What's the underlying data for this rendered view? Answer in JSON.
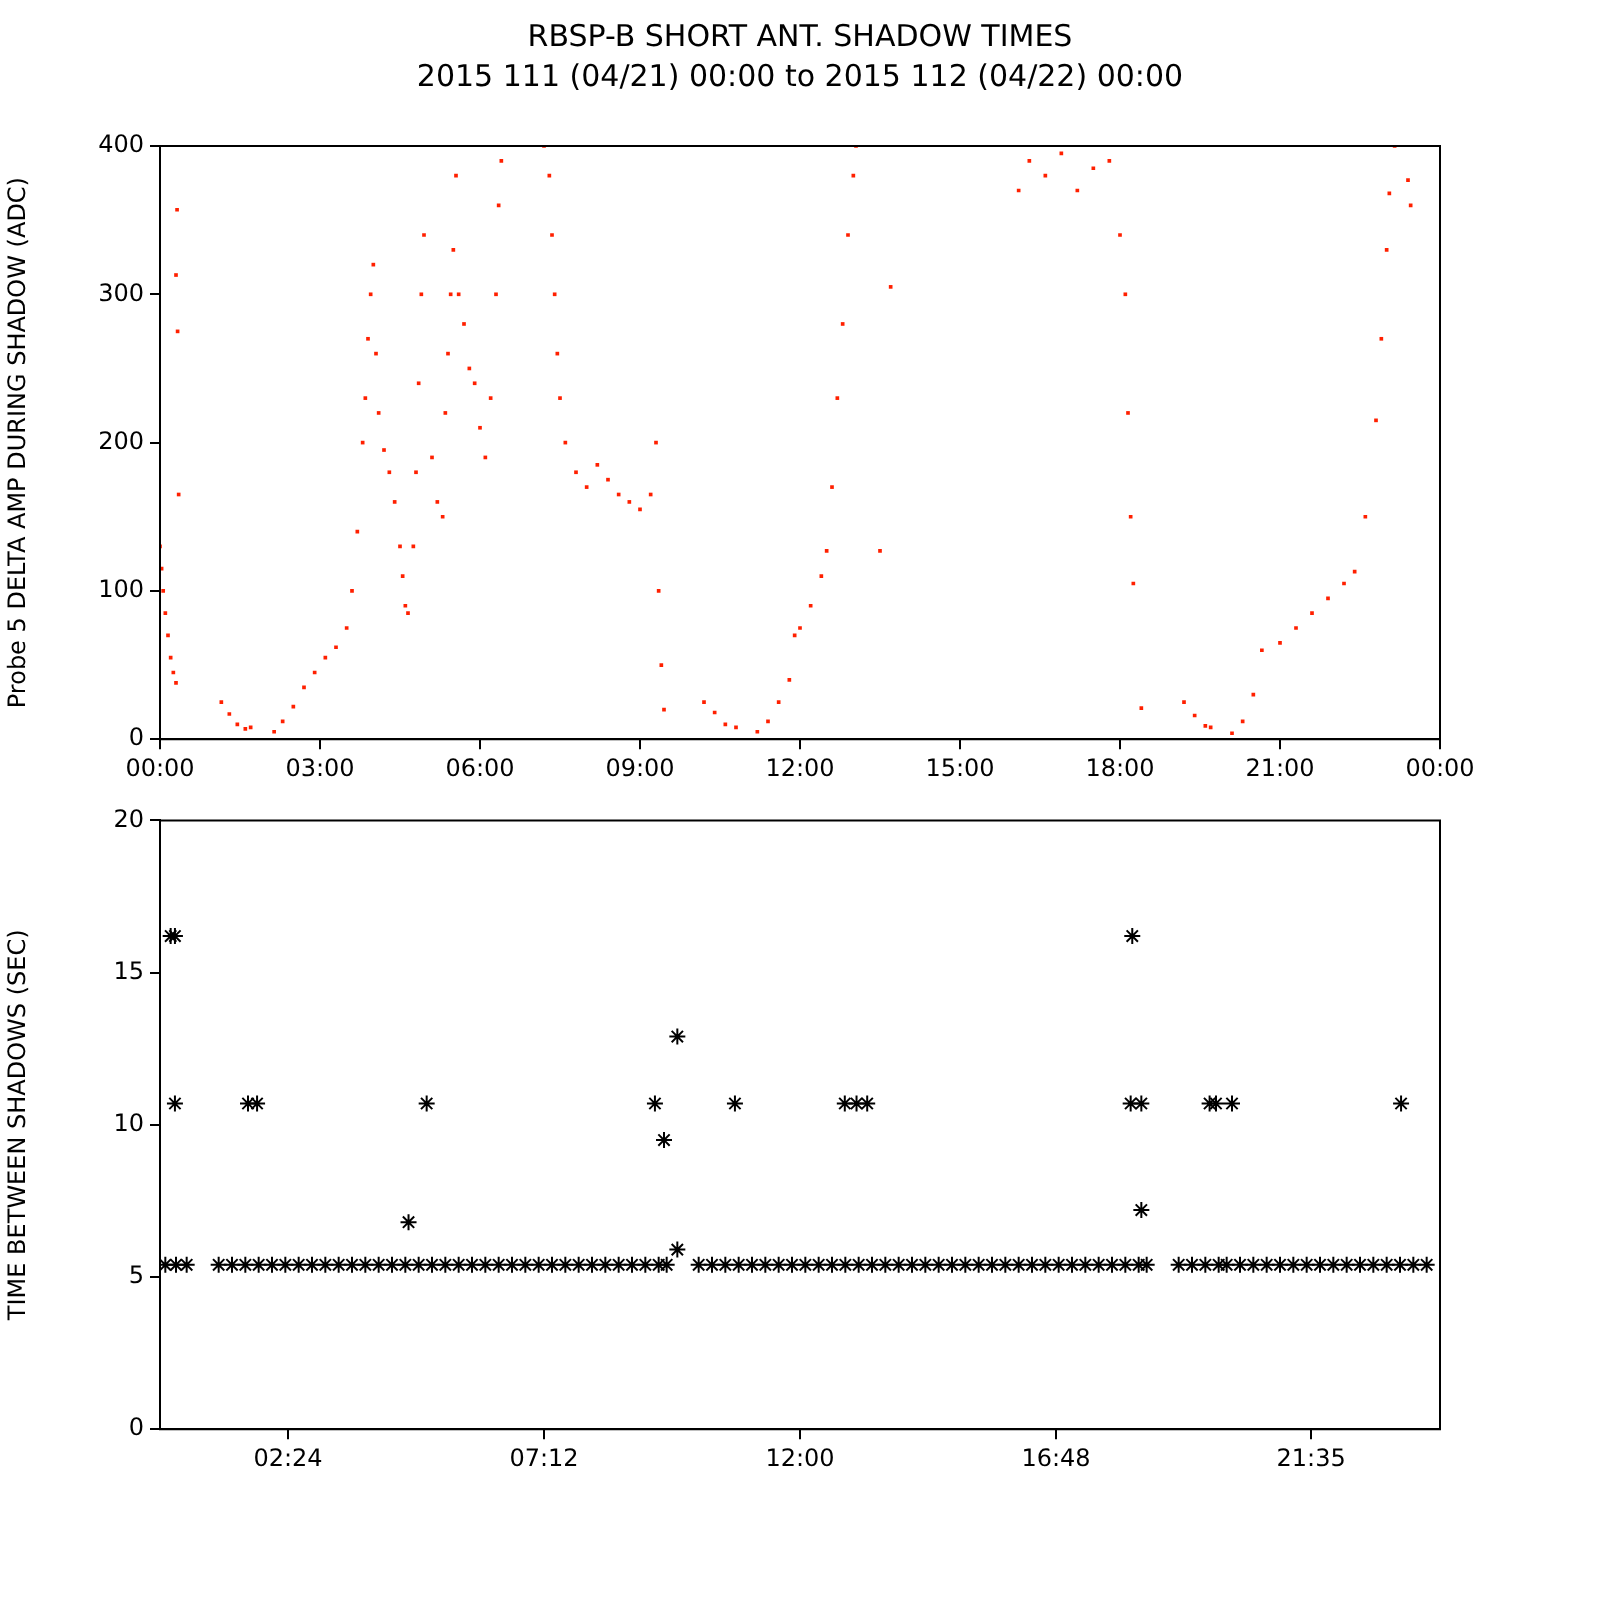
{
  "chart_data": [
    {
      "type": "scatter",
      "title": "RBSP-B SHORT ANT. SHADOW TIMES",
      "subtitle": "2015 111 (04/21) 00:00 to 2015 112 (04/22) 00:00",
      "ylabel": "Probe 5 DELTA AMP DURING SHADOW (ADC)",
      "xlim": [
        0,
        24
      ],
      "xticks": [
        {
          "value": 0,
          "label": "00:00"
        },
        {
          "value": 3,
          "label": "03:00"
        },
        {
          "value": 6,
          "label": "06:00"
        },
        {
          "value": 9,
          "label": "09:00"
        },
        {
          "value": 12,
          "label": "12:00"
        },
        {
          "value": 15,
          "label": "15:00"
        },
        {
          "value": 18,
          "label": "18:00"
        },
        {
          "value": 21,
          "label": "21:00"
        },
        {
          "value": 24,
          "label": "00:00"
        }
      ],
      "ylim": [
        0,
        400
      ],
      "yticks": [
        0,
        100,
        200,
        300,
        400
      ],
      "marker": "square",
      "grid": false,
      "legend": false,
      "series": [
        {
          "color": "#ff2000",
          "x": [
            0,
            0.03,
            0.06,
            0.1,
            0.15,
            0.2,
            0.25,
            0.3,
            0.32,
            0.3,
            0.33,
            0.35,
            1.15,
            1.3,
            1.45,
            1.6,
            1.7,
            2.14,
            2.3,
            2.5,
            2.7,
            2.9,
            3.1,
            3.3,
            3.5,
            3.6,
            3.7,
            3.8,
            3.85,
            3.9,
            3.95,
            4.0,
            4.05,
            4.1,
            4.2,
            4.3,
            4.4,
            4.5,
            4.55,
            4.6,
            4.65,
            4.75,
            4.8,
            4.85,
            4.9,
            4.95,
            5.1,
            5.2,
            5.3,
            5.35,
            5.4,
            5.45,
            5.5,
            5.55,
            5.6,
            5.7,
            5.8,
            5.9,
            6.0,
            6.1,
            6.2,
            6.3,
            6.35,
            6.4,
            7.2,
            7.3,
            7.35,
            7.4,
            7.45,
            7.5,
            7.6,
            7.8,
            8.0,
            8.2,
            8.4,
            8.6,
            8.8,
            9.0,
            9.2,
            9.3,
            9.35,
            9.4,
            9.45,
            10.2,
            10.4,
            10.6,
            10.8,
            11.2,
            11.4,
            11.6,
            11.8,
            11.9,
            12.0,
            12.2,
            12.4,
            12.5,
            12.6,
            12.7,
            12.8,
            12.9,
            13.0,
            13.05,
            13.7,
            13.5,
            16.1,
            16.3,
            16.6,
            16.9,
            17.2,
            17.5,
            17.8,
            18.0,
            18.1,
            18.15,
            18.2,
            18.25,
            18.4,
            19.2,
            19.4,
            19.6,
            19.7,
            20.1,
            20.3,
            20.5,
            20.66,
            21.0,
            21.3,
            21.6,
            21.9,
            22.2,
            22.4,
            22.6,
            22.8,
            22.9,
            23.0,
            23.05,
            23.15,
            23.4,
            23.45
          ],
          "values": [
            130,
            115,
            100,
            85,
            70,
            55,
            45,
            38,
            357,
            313,
            275,
            165,
            25,
            17,
            10,
            7,
            8,
            5,
            12,
            22,
            35,
            45,
            55,
            62,
            75,
            100,
            140,
            200,
            230,
            270,
            300,
            320,
            260,
            220,
            195,
            180,
            160,
            130,
            110,
            90,
            85,
            130,
            180,
            240,
            300,
            340,
            190,
            160,
            150,
            220,
            260,
            300,
            330,
            380,
            300,
            280,
            250,
            240,
            210,
            190,
            230,
            300,
            360,
            390,
            400,
            380,
            340,
            300,
            260,
            230,
            200,
            180,
            170,
            185,
            175,
            165,
            160,
            155,
            165,
            200,
            100,
            50,
            20,
            25,
            18,
            10,
            8,
            5,
            12,
            25,
            40,
            70,
            75,
            90,
            110,
            127,
            170,
            230,
            280,
            340,
            380,
            400,
            305,
            127,
            370,
            390,
            380,
            395,
            370,
            385,
            390,
            340,
            300,
            220,
            150,
            105,
            21,
            25,
            16,
            9,
            8,
            4,
            12,
            30,
            60,
            65,
            75,
            85,
            95,
            105,
            113,
            150,
            215,
            270,
            330,
            368,
            400,
            377,
            360
          ]
        }
      ]
    },
    {
      "type": "scatter",
      "ylabel": "TIME BETWEEN SHADOWS (SEC)",
      "xlim": [
        0,
        24
      ],
      "xticks": [
        {
          "value": 2.4,
          "label": "02:24"
        },
        {
          "value": 7.2,
          "label": "07:12"
        },
        {
          "value": 12,
          "label": "12:00"
        },
        {
          "value": 16.8,
          "label": "16:48"
        },
        {
          "value": 21.5833,
          "label": "21:35"
        }
      ],
      "ylim": [
        0,
        20
      ],
      "yticks": [
        0,
        5,
        10,
        15,
        20
      ],
      "marker": "cross",
      "grid": false,
      "legend": false,
      "series": [
        {
          "color": "#000000",
          "x": [
            0.1,
            0.3,
            0.5,
            1.1,
            1.35,
            1.6,
            1.85,
            2.1,
            2.35,
            2.6,
            2.85,
            3.1,
            3.35,
            3.6,
            3.85,
            4.1,
            4.35,
            4.6,
            4.85,
            5.1,
            5.35,
            5.6,
            5.85,
            6.1,
            6.35,
            6.6,
            6.85,
            7.1,
            7.35,
            7.6,
            7.85,
            8.1,
            8.35,
            8.6,
            8.85,
            9.1,
            9.35,
            9.5,
            10.1,
            10.35,
            10.6,
            10.85,
            11.1,
            11.35,
            11.6,
            11.85,
            12.1,
            12.35,
            12.6,
            12.85,
            13.1,
            13.35,
            13.6,
            13.85,
            14.1,
            14.35,
            14.6,
            14.85,
            15.1,
            15.35,
            15.6,
            15.85,
            16.1,
            16.35,
            16.6,
            16.85,
            17.1,
            17.35,
            17.6,
            17.85,
            18.1,
            18.35,
            18.5,
            19.1,
            19.35,
            19.6,
            19.85,
            20.0,
            20.25,
            20.5,
            20.75,
            21.0,
            21.25,
            21.5,
            21.75,
            22.0,
            22.25,
            22.5,
            22.75,
            23.0,
            23.25,
            23.5,
            23.75,
            0.2,
            0.28,
            0.28,
            1.65,
            1.82,
            4.66,
            5.0,
            9.28,
            9.45,
            9.7,
            9.7,
            10.78,
            12.84,
            13.06,
            13.26,
            18.23,
            18.2,
            18.4,
            18.4,
            19.68,
            19.8,
            20.1,
            23.27
          ],
          "values": [
            5.4,
            5.4,
            5.4,
            5.4,
            5.4,
            5.4,
            5.4,
            5.4,
            5.4,
            5.4,
            5.4,
            5.4,
            5.4,
            5.4,
            5.4,
            5.4,
            5.4,
            5.4,
            5.4,
            5.4,
            5.4,
            5.4,
            5.4,
            5.4,
            5.4,
            5.4,
            5.4,
            5.4,
            5.4,
            5.4,
            5.4,
            5.4,
            5.4,
            5.4,
            5.4,
            5.4,
            5.4,
            5.4,
            5.4,
            5.4,
            5.4,
            5.4,
            5.4,
            5.4,
            5.4,
            5.4,
            5.4,
            5.4,
            5.4,
            5.4,
            5.4,
            5.4,
            5.4,
            5.4,
            5.4,
            5.4,
            5.4,
            5.4,
            5.4,
            5.4,
            5.4,
            5.4,
            5.4,
            5.4,
            5.4,
            5.4,
            5.4,
            5.4,
            5.4,
            5.4,
            5.4,
            5.4,
            5.4,
            5.4,
            5.4,
            5.4,
            5.4,
            5.4,
            5.4,
            5.4,
            5.4,
            5.4,
            5.4,
            5.4,
            5.4,
            5.4,
            5.4,
            5.4,
            5.4,
            5.4,
            5.4,
            5.4,
            5.4,
            16.2,
            16.2,
            10.7,
            10.7,
            10.7,
            6.8,
            10.7,
            10.7,
            9.5,
            12.9,
            5.9,
            10.7,
            10.7,
            10.7,
            10.7,
            16.2,
            10.7,
            10.7,
            7.2,
            10.7,
            10.7,
            10.7,
            10.7
          ]
        }
      ]
    }
  ]
}
